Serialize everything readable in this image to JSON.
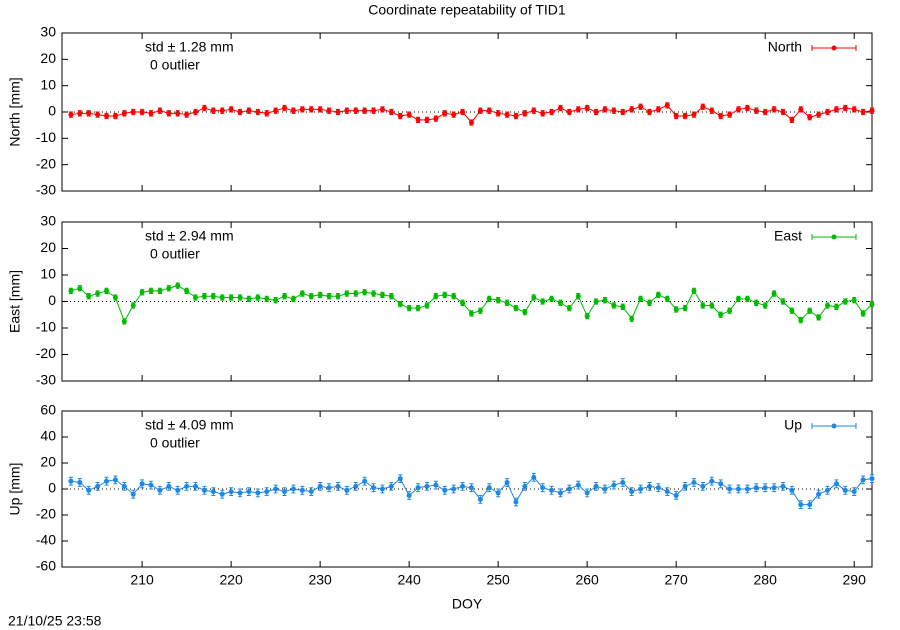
{
  "title": "Coordinate repeatability of TID1",
  "timestamp": "21/10/25 23:58",
  "chart_data": [
    {
      "type": "line",
      "ylabel": "North [mm]",
      "legend": "top right",
      "annotations": [
        "std ± 1.28 mm",
        "0 outlier"
      ],
      "xlim": [
        201,
        292
      ],
      "xticks": [
        210,
        220,
        230,
        240,
        250,
        260,
        270,
        280,
        290
      ],
      "ylim": [
        -30,
        30
      ],
      "yticks": [
        -30,
        -20,
        -10,
        0,
        10,
        20,
        30
      ],
      "x": [
        202,
        203,
        204,
        205,
        206,
        207,
        208,
        209,
        210,
        211,
        212,
        213,
        214,
        215,
        216,
        217,
        218,
        219,
        220,
        221,
        222,
        223,
        224,
        225,
        226,
        227,
        228,
        229,
        230,
        231,
        232,
        233,
        234,
        235,
        236,
        237,
        238,
        239,
        240,
        241,
        242,
        243,
        244,
        245,
        246,
        247,
        248,
        249,
        250,
        251,
        252,
        253,
        254,
        255,
        256,
        257,
        258,
        259,
        260,
        261,
        262,
        263,
        264,
        265,
        266,
        267,
        268,
        269,
        270,
        271,
        272,
        273,
        274,
        275,
        276,
        277,
        278,
        279,
        280,
        281,
        282,
        283,
        284,
        285,
        286,
        287,
        288,
        289,
        290,
        291,
        292
      ],
      "series": [
        {
          "name": "North",
          "color": "#ff0000",
          "values": [
            -1,
            -0.5,
            -0.5,
            -1,
            -1.5,
            -1.5,
            -0.5,
            0,
            0,
            -0.5,
            0.5,
            -0.5,
            -0.5,
            -1,
            0,
            1.5,
            0.5,
            0.5,
            1,
            0,
            0.5,
            0,
            -0.5,
            0.5,
            1.5,
            0.5,
            1,
            1,
            1,
            0.5,
            0,
            0.5,
            0.5,
            0.5,
            0.5,
            1,
            0,
            -1.5,
            -1,
            -3,
            -3,
            -2.5,
            -0.5,
            -1,
            0,
            -4,
            0.5,
            0.5,
            -0.5,
            -1,
            -1.5,
            -0.5,
            0.5,
            -0.5,
            0,
            1.5,
            0,
            1,
            1.5,
            0,
            1,
            0.5,
            0,
            1,
            2,
            0,
            1,
            2.5,
            -1.5,
            -1.5,
            -1,
            2,
            0.5,
            -1.5,
            -1,
            1,
            1.5,
            0.5,
            0,
            1,
            0,
            -3,
            1,
            -2,
            -1,
            0,
            1,
            1.5,
            1,
            0,
            0.5
          ],
          "errors": [
            1,
            1,
            1,
            1,
            1,
            1,
            1,
            1,
            1,
            1,
            1,
            1,
            1,
            1,
            1,
            1,
            1,
            1,
            1,
            1,
            1,
            1,
            1,
            1,
            1,
            1,
            1,
            1,
            1,
            1,
            1,
            1,
            1,
            1,
            1,
            1,
            1,
            1,
            1,
            1,
            1,
            1,
            1,
            1,
            1,
            1,
            1,
            1,
            1,
            1,
            1,
            1,
            1,
            1,
            1,
            1,
            1,
            1,
            1,
            1,
            1,
            1,
            1,
            1,
            1,
            1,
            1,
            1,
            1,
            1,
            1,
            1,
            1,
            1,
            1,
            1,
            1,
            1,
            1,
            1,
            1,
            1,
            1,
            1,
            1,
            1,
            1,
            1,
            1,
            1,
            1
          ]
        }
      ]
    },
    {
      "type": "line",
      "ylabel": "East [mm]",
      "legend": "top right",
      "annotations": [
        "std ± 2.94 mm",
        "0 outlier"
      ],
      "xlim": [
        201,
        292
      ],
      "xticks": [
        210,
        220,
        230,
        240,
        250,
        260,
        270,
        280,
        290
      ],
      "ylim": [
        -30,
        30
      ],
      "yticks": [
        -30,
        -20,
        -10,
        0,
        10,
        20,
        30
      ],
      "x": [
        202,
        203,
        204,
        205,
        206,
        207,
        208,
        209,
        210,
        211,
        212,
        213,
        214,
        215,
        216,
        217,
        218,
        219,
        220,
        221,
        222,
        223,
        224,
        225,
        226,
        227,
        228,
        229,
        230,
        231,
        232,
        233,
        234,
        235,
        236,
        237,
        238,
        239,
        240,
        241,
        242,
        243,
        244,
        245,
        246,
        247,
        248,
        249,
        250,
        251,
        252,
        253,
        254,
        255,
        256,
        257,
        258,
        259,
        260,
        261,
        262,
        263,
        264,
        265,
        266,
        267,
        268,
        269,
        270,
        271,
        272,
        273,
        274,
        275,
        276,
        277,
        278,
        279,
        280,
        281,
        282,
        283,
        284,
        285,
        286,
        287,
        288,
        289,
        290,
        291,
        292
      ],
      "series": [
        {
          "name": "East",
          "color": "#00bb00",
          "values": [
            4,
            5,
            2,
            3,
            4,
            1.5,
            -7.5,
            -1.5,
            3.5,
            4,
            4,
            5,
            6,
            4,
            1.5,
            2,
            2,
            1.5,
            1.5,
            1.5,
            1,
            1.5,
            1,
            0.5,
            2,
            1,
            3,
            2,
            2.5,
            2,
            2,
            3,
            3,
            3.5,
            3,
            2.5,
            2,
            -1,
            -2.5,
            -2.5,
            -1.5,
            2,
            2.5,
            2,
            -0.5,
            -4.5,
            -3.5,
            1,
            0.5,
            -0.5,
            -2.5,
            -4,
            1.5,
            0,
            1,
            -0.5,
            -2.5,
            2,
            -5.5,
            0,
            0.5,
            -1.5,
            -2,
            -6.5,
            1,
            -0.5,
            2.5,
            1,
            -3,
            -2.5,
            4,
            -1.5,
            -1.5,
            -5,
            -3.5,
            1,
            1,
            -0.5,
            -1.5,
            3,
            0,
            -3.5,
            -7,
            -3.5,
            -6,
            -1.5,
            -2,
            0,
            0.5,
            -4.5,
            -1
          ],
          "errors": [
            1,
            1,
            1,
            1,
            1,
            1,
            1,
            1,
            1,
            1,
            1,
            1,
            1,
            1,
            1,
            1,
            1,
            1,
            1,
            1,
            1,
            1,
            1,
            1,
            1,
            1,
            1,
            1,
            1,
            1,
            1,
            1,
            1,
            1,
            1,
            1,
            1,
            1,
            1,
            1,
            1,
            1,
            1,
            1,
            1,
            1,
            1,
            1,
            1,
            1,
            1,
            1,
            1,
            1,
            1,
            1,
            1,
            1,
            1,
            1,
            1,
            1,
            1,
            1,
            1,
            1,
            1,
            1,
            1,
            1,
            1,
            1,
            1,
            1,
            1,
            1,
            1,
            1,
            1,
            1,
            1,
            1,
            1,
            1,
            1,
            1,
            1,
            1,
            1,
            1,
            1
          ]
        }
      ]
    },
    {
      "type": "line",
      "ylabel": "Up [mm]",
      "xlabel": "DOY",
      "legend": "top right",
      "annotations": [
        "std ± 4.09 mm",
        "0 outlier"
      ],
      "xlim": [
        201,
        292
      ],
      "xticks": [
        210,
        220,
        230,
        240,
        250,
        260,
        270,
        280,
        290
      ],
      "ylim": [
        -60,
        60
      ],
      "yticks": [
        -60,
        -40,
        -20,
        0,
        20,
        40,
        60
      ],
      "x": [
        202,
        203,
        204,
        205,
        206,
        207,
        208,
        209,
        210,
        211,
        212,
        213,
        214,
        215,
        216,
        217,
        218,
        219,
        220,
        221,
        222,
        223,
        224,
        225,
        226,
        227,
        228,
        229,
        230,
        231,
        232,
        233,
        234,
        235,
        236,
        237,
        238,
        239,
        240,
        241,
        242,
        243,
        244,
        245,
        246,
        247,
        248,
        249,
        250,
        251,
        252,
        253,
        254,
        255,
        256,
        257,
        258,
        259,
        260,
        261,
        262,
        263,
        264,
        265,
        266,
        267,
        268,
        269,
        270,
        271,
        272,
        273,
        274,
        275,
        276,
        277,
        278,
        279,
        280,
        281,
        282,
        283,
        284,
        285,
        286,
        287,
        288,
        289,
        290,
        291,
        292
      ],
      "series": [
        {
          "name": "Up",
          "color": "#1e88e5",
          "values": [
            6,
            5,
            -1,
            2,
            6,
            7,
            2,
            -4,
            4,
            3,
            -1,
            2,
            -1,
            2,
            2,
            -1,
            -2,
            -4,
            -2,
            -3,
            -2,
            -3,
            -2,
            0,
            -2,
            0,
            -1,
            -2,
            2,
            1,
            2,
            -1,
            2,
            6,
            1,
            0,
            2,
            8,
            -5,
            1,
            2,
            3,
            -1,
            0,
            2,
            1,
            -8,
            1,
            -3,
            5,
            -10,
            2,
            9,
            1,
            -1,
            -3,
            0,
            3,
            -3,
            2,
            0,
            3,
            5,
            -2,
            0,
            2,
            1,
            -2,
            -5,
            2,
            5,
            2,
            6,
            4,
            0,
            0,
            0,
            1,
            1,
            1,
            2,
            -1,
            -12,
            -12,
            -4,
            -1,
            4,
            -1,
            -2,
            7,
            8
          ],
          "errors": [
            3,
            3,
            3,
            3,
            3,
            3,
            3,
            3,
            3,
            3,
            3,
            3,
            3,
            3,
            3,
            3,
            3,
            3,
            3,
            3,
            3,
            3,
            3,
            3,
            3,
            3,
            3,
            3,
            3,
            3,
            3,
            3,
            3,
            3,
            3,
            3,
            3,
            3,
            3,
            3,
            3,
            3,
            3,
            3,
            3,
            3,
            3,
            3,
            3,
            3,
            3,
            3,
            3,
            3,
            3,
            3,
            3,
            3,
            3,
            3,
            3,
            3,
            3,
            3,
            3,
            3,
            3,
            3,
            3,
            3,
            3,
            3,
            3,
            3,
            3,
            3,
            3,
            3,
            3,
            3,
            3,
            3,
            3,
            3,
            3,
            3,
            3,
            3,
            3,
            3,
            3
          ]
        }
      ]
    }
  ]
}
